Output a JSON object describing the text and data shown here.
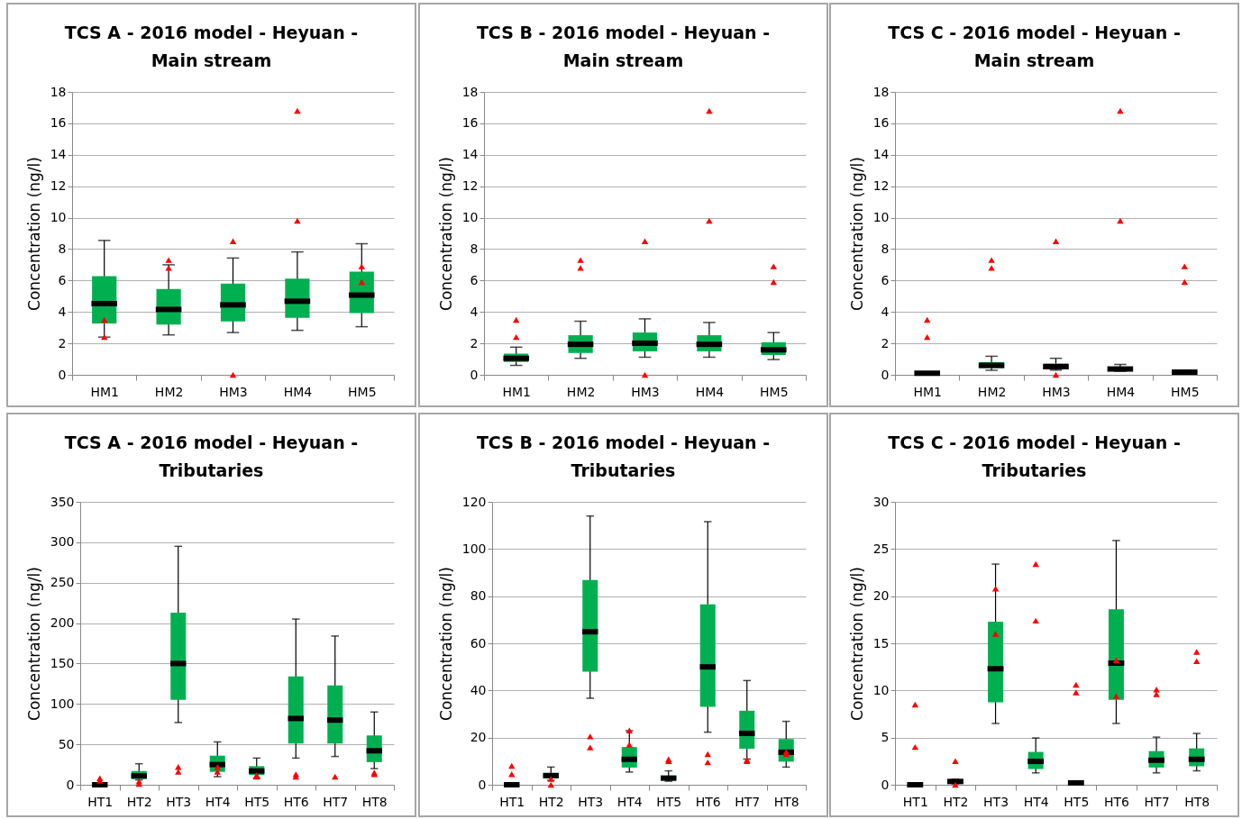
{
  "chart_data": [
    {
      "type": "box",
      "title": "TCS A - 2016 model - Heyuan - Main stream",
      "ylabel": "Concentration (ng/l)",
      "categories": [
        "HM1",
        "HM2",
        "HM3",
        "HM4",
        "HM5"
      ],
      "ylim": [
        0,
        18
      ],
      "yticks": [
        0,
        2,
        4,
        6,
        8,
        10,
        12,
        14,
        16,
        18
      ],
      "grid": "y",
      "series": [
        {
          "type": "box",
          "color": "#00b050",
          "boxes": [
            {
              "low": 2.4,
              "q1": 3.27,
              "median": 4.53,
              "q3": 6.27,
              "high": 8.55
            },
            {
              "low": 2.54,
              "q1": 3.19,
              "median": 4.16,
              "q3": 5.46,
              "high": 7.0
            },
            {
              "low": 2.69,
              "q1": 3.4,
              "median": 4.45,
              "q3": 5.8,
              "high": 7.43
            },
            {
              "low": 2.83,
              "q1": 3.62,
              "median": 4.68,
              "q3": 6.12,
              "high": 7.82
            },
            {
              "low": 3.06,
              "q1": 3.93,
              "median": 5.07,
              "q3": 6.56,
              "high": 8.34
            }
          ]
        },
        {
          "type": "scatter",
          "color": "#ff0000",
          "marker": "triangle",
          "x": [
            "HM1",
            "HM1",
            "HM2",
            "HM2",
            "HM3",
            "HM3",
            "HM4",
            "HM4",
            "HM5",
            "HM5"
          ],
          "values": [
            3.5,
            2.4,
            7.3,
            6.8,
            8.5,
            0,
            16.8,
            9.8,
            6.9,
            5.9
          ]
        }
      ]
    },
    {
      "type": "box",
      "title": "TCS B - 2016 model - Heyuan - Main stream",
      "ylabel": "Concentration (ng/l)",
      "categories": [
        "HM1",
        "HM2",
        "HM3",
        "HM4",
        "HM5"
      ],
      "ylim": [
        0,
        18
      ],
      "yticks": [
        0,
        2,
        4,
        6,
        8,
        10,
        12,
        14,
        16,
        18
      ],
      "grid": "y",
      "series": [
        {
          "type": "box",
          "color": "#00b050",
          "boxes": [
            {
              "low": 0.6,
              "q1": 0.81,
              "median": 1.05,
              "q3": 1.34,
              "high": 1.76
            },
            {
              "low": 1.05,
              "q1": 1.39,
              "median": 1.94,
              "q3": 2.52,
              "high": 3.41
            },
            {
              "low": 1.12,
              "q1": 1.49,
              "median": 2.01,
              "q3": 2.69,
              "high": 3.56
            },
            {
              "low": 1.12,
              "q1": 1.49,
              "median": 1.94,
              "q3": 2.52,
              "high": 3.33
            },
            {
              "low": 0.97,
              "q1": 1.26,
              "median": 1.59,
              "q3": 2.07,
              "high": 2.69
            }
          ]
        },
        {
          "type": "scatter",
          "color": "#ff0000",
          "marker": "triangle",
          "x": [
            "HM1",
            "HM1",
            "HM2",
            "HM2",
            "HM3",
            "HM3",
            "HM4",
            "HM4",
            "HM5",
            "HM5"
          ],
          "values": [
            3.5,
            2.4,
            7.3,
            6.8,
            8.5,
            0,
            16.8,
            9.8,
            6.9,
            5.9
          ]
        }
      ]
    },
    {
      "type": "box",
      "title": "TCS C - 2016 model - Heyuan - Main stream",
      "ylabel": "Concentration (ng/l)",
      "categories": [
        "HM1",
        "HM2",
        "HM3",
        "HM4",
        "HM5"
      ],
      "ylim": [
        0,
        18
      ],
      "yticks": [
        0,
        2,
        4,
        6,
        8,
        10,
        12,
        14,
        16,
        18
      ],
      "grid": "y",
      "series": [
        {
          "type": "box",
          "color": "#00b050",
          "boxes": [
            {
              "low": 0.02,
              "q1": 0.05,
              "median": 0.1,
              "q3": 0.15,
              "high": 0.15
            },
            {
              "low": 0.29,
              "q1": 0.43,
              "median": 0.6,
              "q3": 0.81,
              "high": 1.18
            },
            {
              "low": 0.3,
              "q1": 0.39,
              "median": 0.52,
              "q3": 0.72,
              "high": 1.05
            },
            {
              "low": 0.23,
              "q1": 0.27,
              "median": 0.37,
              "q3": 0.46,
              "high": 0.66
            },
            {
              "low": 0.1,
              "q1": 0.12,
              "median": 0.17,
              "q3": 0.23,
              "high": 0.27
            }
          ]
        },
        {
          "type": "scatter",
          "color": "#ff0000",
          "marker": "triangle",
          "x": [
            "HM1",
            "HM1",
            "HM2",
            "HM2",
            "HM3",
            "HM3",
            "HM4",
            "HM4",
            "HM5",
            "HM5"
          ],
          "values": [
            3.5,
            2.4,
            7.3,
            6.8,
            8.5,
            0,
            16.8,
            9.8,
            6.9,
            5.9
          ]
        }
      ]
    },
    {
      "type": "box",
      "title": "TCS A - 2016 model - Heyuan - Tributaries",
      "ylabel": "Concentration (ng/l)",
      "categories": [
        "HT1",
        "HT2",
        "HT3",
        "HT4",
        "HT5",
        "HT6",
        "HT7",
        "HT8"
      ],
      "ylim": [
        0,
        350
      ],
      "yticks": [
        0,
        50,
        100,
        150,
        200,
        250,
        300,
        350
      ],
      "grid": "y",
      "series": [
        {
          "type": "box",
          "color": "#00b050",
          "boxes": [
            {
              "low": 0,
              "q1": 0,
              "median": 0,
              "q3": 1,
              "high": 2
            },
            {
              "low": 6,
              "q1": 7,
              "median": 11,
              "q3": 17,
              "high": 26
            },
            {
              "low": 77,
              "q1": 105,
              "median": 150,
              "q3": 213,
              "high": 295
            },
            {
              "low": 10,
              "q1": 16,
              "median": 25,
              "q3": 36,
              "high": 53
            },
            {
              "low": 8,
              "q1": 12,
              "median": 17,
              "q3": 23,
              "high": 33
            },
            {
              "low": 33,
              "q1": 51,
              "median": 82,
              "q3": 134,
              "high": 205
            },
            {
              "low": 35,
              "q1": 51,
              "median": 80,
              "q3": 123,
              "high": 184
            },
            {
              "low": 20,
              "q1": 28,
              "median": 42,
              "q3": 61,
              "high": 90
            }
          ]
        },
        {
          "type": "scatter",
          "color": "#ff0000",
          "marker": "triangle",
          "x": [
            "HT1",
            "HT1",
            "HT2",
            "HT2",
            "HT3",
            "HT3",
            "HT4",
            "HT4",
            "HT5",
            "HT5",
            "HT6",
            "HT6",
            "HT7",
            "HT8",
            "HT8"
          ],
          "values": [
            8,
            5,
            4,
            1,
            22,
            16,
            22,
            16,
            12,
            10,
            13,
            10,
            10,
            15,
            13
          ]
        }
      ]
    },
    {
      "type": "box",
      "title": "TCS B - 2016 model - Heyuan - Tributaries",
      "ylabel": "Concentration (ng/l)",
      "categories": [
        "HT1",
        "HT2",
        "HT3",
        "HT4",
        "HT5",
        "HT6",
        "HT7",
        "HT8"
      ],
      "ylim": [
        0,
        120
      ],
      "yticks": [
        0,
        20,
        40,
        60,
        80,
        100,
        120
      ],
      "grid": "y",
      "series": [
        {
          "type": "box",
          "color": "#00b050",
          "boxes": [
            {
              "low": 0,
              "q1": 0,
              "median": 0,
              "q3": 0.3,
              "high": 0.3
            },
            {
              "low": 1.9,
              "q1": 2.7,
              "median": 3.9,
              "q3": 5,
              "high": 7.5
            },
            {
              "low": 36.7,
              "q1": 48,
              "median": 64.9,
              "q3": 86.8,
              "high": 114
            },
            {
              "low": 5.4,
              "q1": 7.3,
              "median": 10.8,
              "q3": 16,
              "high": 22.9
            },
            {
              "low": 1.5,
              "q1": 2,
              "median": 2.8,
              "q3": 3.9,
              "high": 5.9
            },
            {
              "low": 22.3,
              "q1": 33.1,
              "median": 50,
              "q3": 76.5,
              "high": 111.6
            },
            {
              "low": 10.9,
              "q1": 15.3,
              "median": 21.8,
              "q3": 31.4,
              "high": 44.2
            },
            {
              "low": 7.5,
              "q1": 9.8,
              "median": 13.8,
              "q3": 19.4,
              "high": 26.9
            }
          ]
        },
        {
          "type": "scatter",
          "color": "#ff0000",
          "marker": "triangle",
          "x": [
            "HT1",
            "HT1",
            "HT2",
            "HT2",
            "HT3",
            "HT3",
            "HT4",
            "HT4",
            "HT5",
            "HT5",
            "HT6",
            "HT6",
            "HT7",
            "HT7",
            "HT8",
            "HT8"
          ],
          "values": [
            8,
            4.5,
            2.5,
            0,
            20.5,
            15.8,
            23,
            17,
            10.8,
            10,
            13,
            9.5,
            10.5,
            10,
            14,
            13
          ]
        }
      ]
    },
    {
      "type": "box",
      "title": "TCS C - 2016 model - Heyuan - Tributaries",
      "ylabel": "Concentration (ng/l)",
      "categories": [
        "HT1",
        "HT2",
        "HT3",
        "HT4",
        "HT5",
        "HT6",
        "HT7",
        "HT8"
      ],
      "ylim": [
        0,
        30
      ],
      "yticks": [
        0,
        5,
        10,
        15,
        20,
        25,
        30
      ],
      "grid": "y",
      "series": [
        {
          "type": "box",
          "color": "#00b050",
          "boxes": [
            {
              "low": 0,
              "q1": 0,
              "median": 0,
              "q3": 0.05,
              "high": 0.05
            },
            {
              "low": 0.1,
              "q1": 0.2,
              "median": 0.35,
              "q3": 0.55,
              "high": 0.6
            },
            {
              "low": 6.5,
              "q1": 8.75,
              "median": 12.3,
              "q3": 17.3,
              "high": 23.4
            },
            {
              "low": 1.26,
              "q1": 1.67,
              "median": 2.48,
              "q3": 3.48,
              "high": 4.96
            },
            {
              "low": 0.1,
              "q1": 0.15,
              "median": 0.2,
              "q3": 0.25,
              "high": 0.3
            },
            {
              "low": 6.5,
              "q1": 9,
              "median": 12.9,
              "q3": 18.6,
              "high": 25.9
            },
            {
              "low": 1.26,
              "q1": 1.83,
              "median": 2.6,
              "q3": 3.57,
              "high": 5.05
            },
            {
              "low": 1.48,
              "q1": 1.96,
              "median": 2.7,
              "q3": 3.86,
              "high": 5.44
            }
          ]
        },
        {
          "type": "scatter",
          "color": "#ff0000",
          "marker": "triangle",
          "x": [
            "HT1",
            "HT1",
            "HT2",
            "HT2",
            "HT3",
            "HT3",
            "HT4",
            "HT4",
            "HT5",
            "HT5",
            "HT6",
            "HT6",
            "HT7",
            "HT7",
            "HT8",
            "HT8"
          ],
          "values": [
            8.5,
            4,
            2.5,
            0,
            20.8,
            16,
            23.4,
            17.4,
            10.6,
            9.8,
            13.2,
            9.4,
            10.1,
            9.6,
            14.1,
            13.1
          ]
        }
      ]
    }
  ]
}
